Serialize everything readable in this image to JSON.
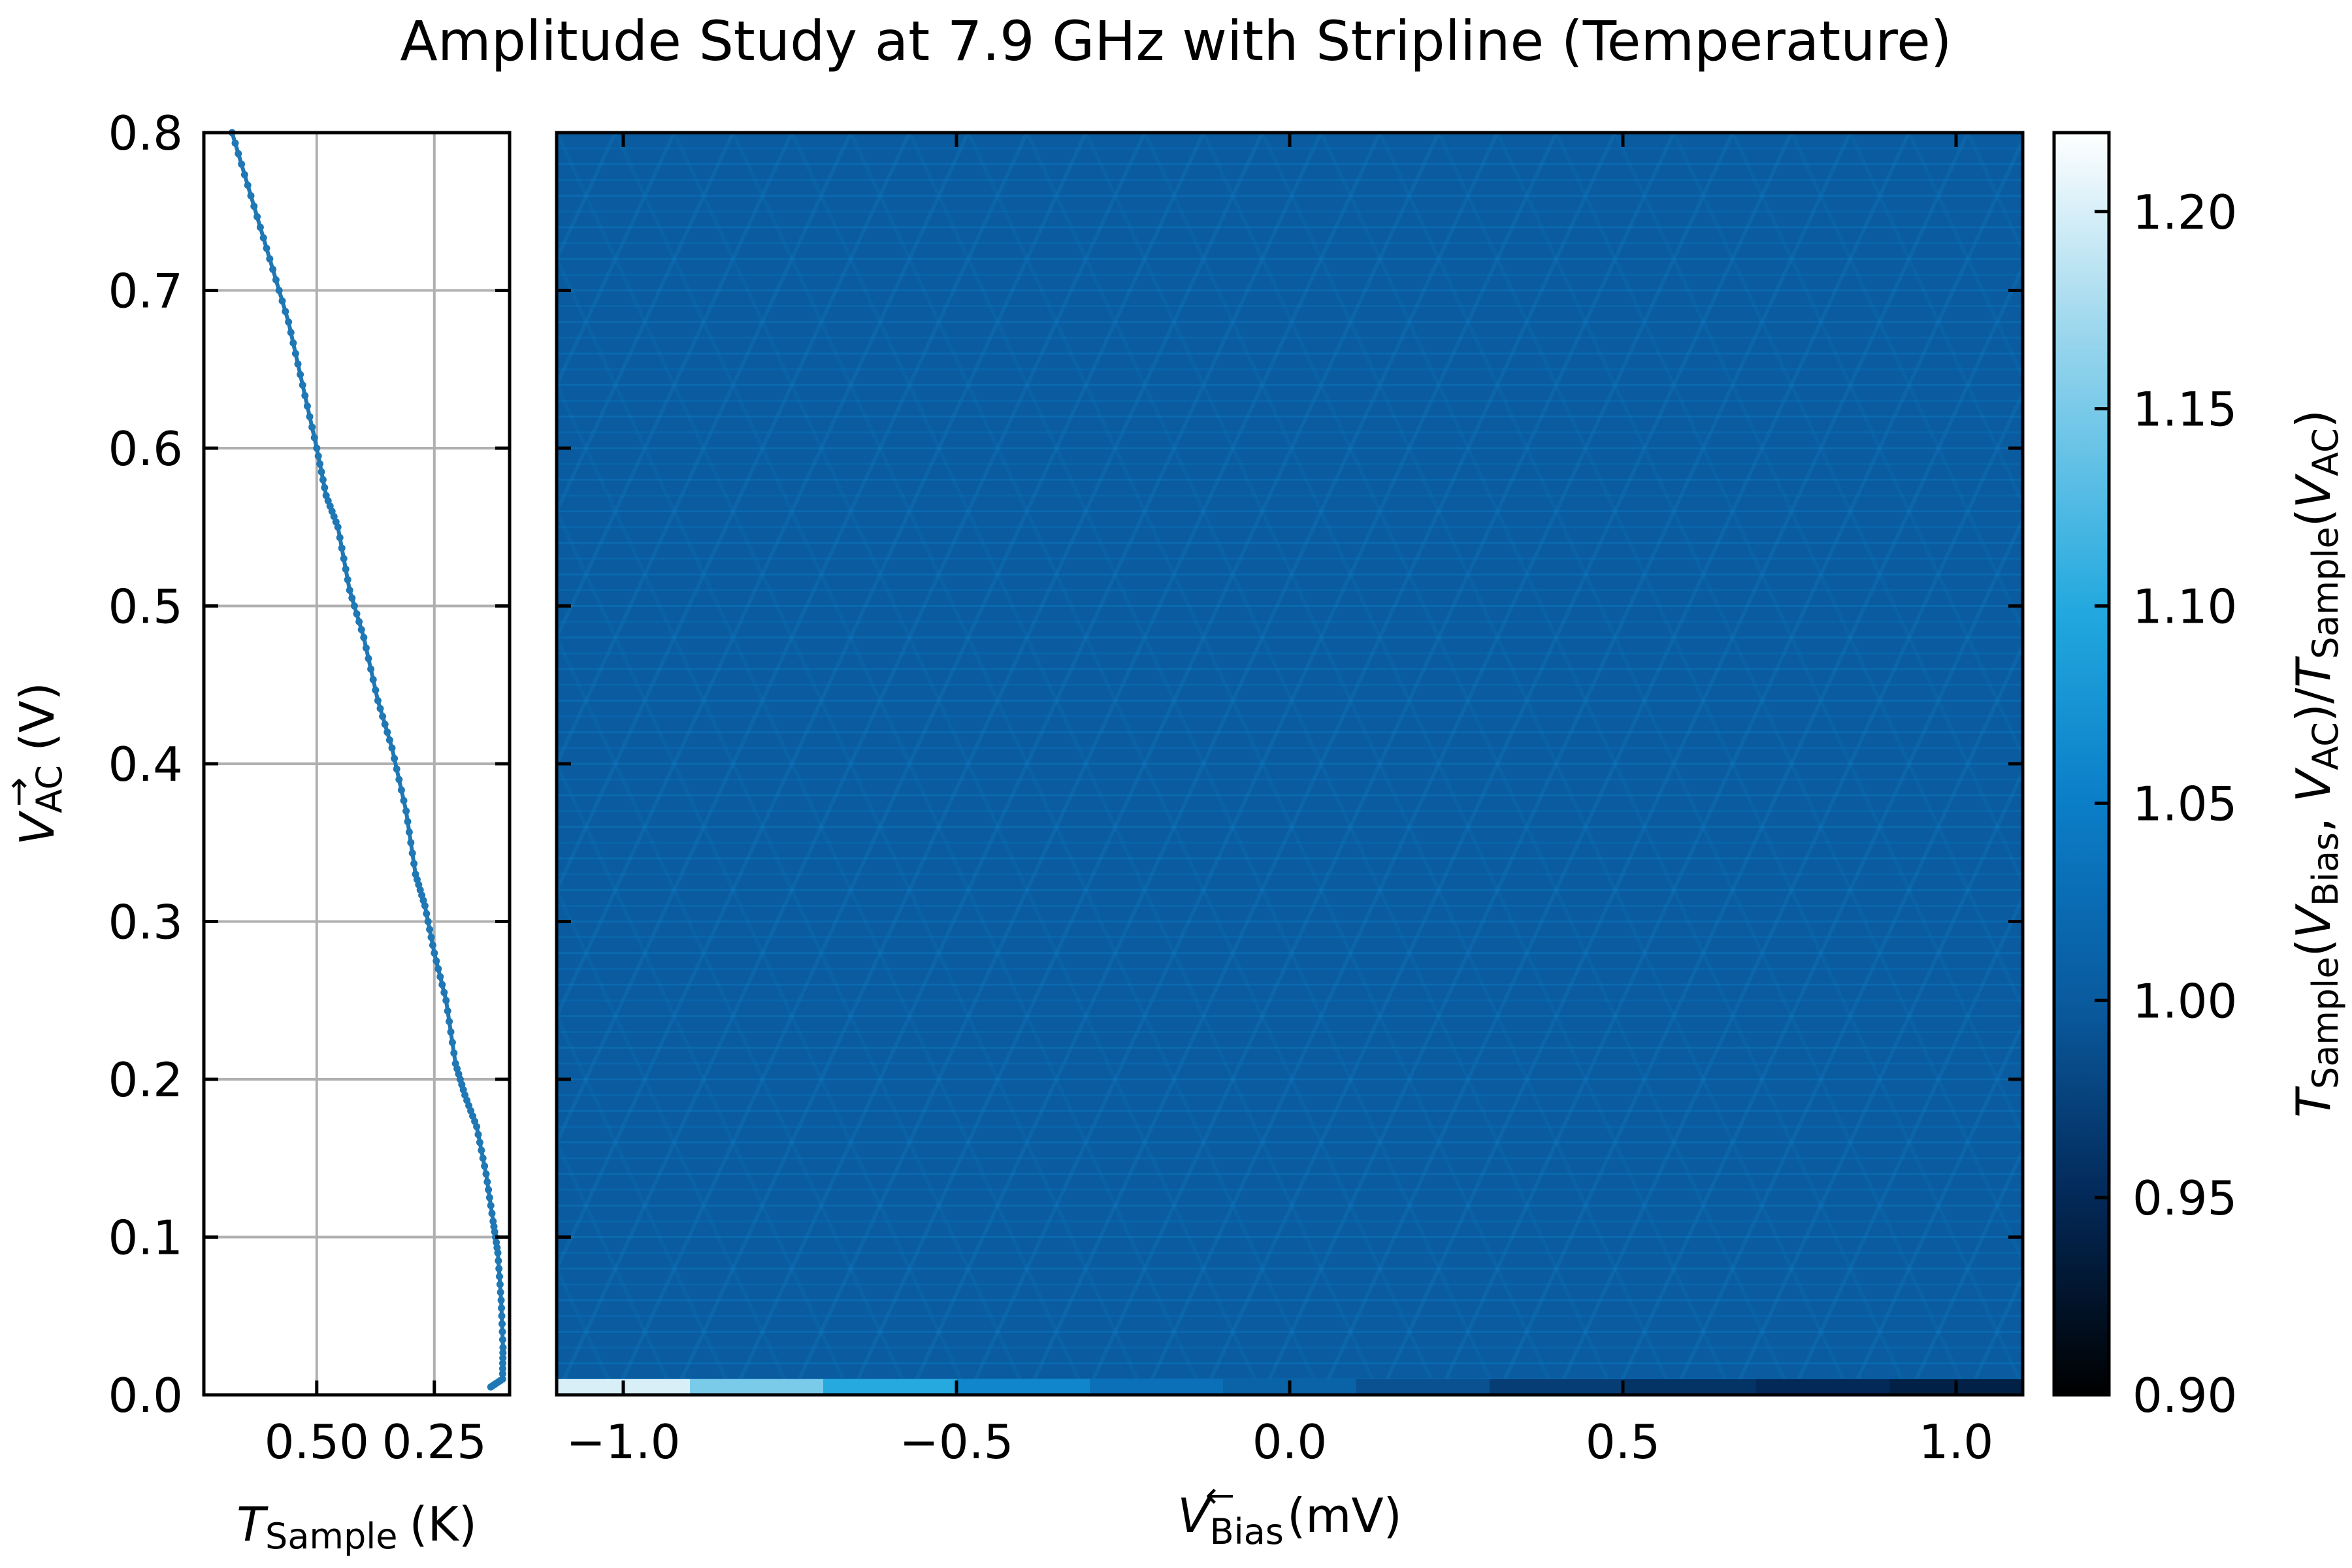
{
  "chart_data": [
    {
      "type": "line",
      "panel": "left",
      "title": "Amplitude Study at 7.9 GHz with Stripline (Temperature)",
      "xlabel": "T_Sample (K)",
      "xlabel_symbol": "T",
      "xlabel_sub": "Sample",
      "xlabel_unit": "(K)",
      "ylabel": "V_AC (V)",
      "ylabel_symbol": "V",
      "ylabel_sub": "AC",
      "ylabel_arrow": "→",
      "ylabel_unit": "(V)",
      "xlim": [
        0.74,
        0.09
      ],
      "ylim": [
        0.0,
        0.8
      ],
      "x_ticks": [
        0.5,
        0.25
      ],
      "x_tick_labels": [
        "0.50",
        "0.25"
      ],
      "y_ticks": [
        0.0,
        0.1,
        0.2,
        0.3,
        0.4,
        0.5,
        0.6,
        0.7,
        0.8
      ],
      "y_tick_labels": [
        "0.0",
        "0.1",
        "0.2",
        "0.3",
        "0.4",
        "0.5",
        "0.6",
        "0.7",
        "0.8"
      ],
      "grid": true,
      "color": "#1f77b4",
      "series": [
        {
          "name": "T_Sample",
          "x": [
            0.13,
            0.105,
            0.104,
            0.108,
            0.115,
            0.125,
            0.14,
            0.16,
            0.185,
            0.205,
            0.225,
            0.25,
            0.27,
            0.29,
            0.31,
            0.34,
            0.37,
            0.4,
            0.43,
            0.455,
            0.48,
            0.5,
            0.53,
            0.56,
            0.6,
            0.64,
            0.68
          ],
          "y": [
            0.005,
            0.01,
            0.03,
            0.06,
            0.09,
            0.11,
            0.14,
            0.17,
            0.19,
            0.21,
            0.25,
            0.28,
            0.31,
            0.33,
            0.37,
            0.41,
            0.44,
            0.48,
            0.51,
            0.55,
            0.57,
            0.6,
            0.64,
            0.68,
            0.72,
            0.76,
            0.8
          ]
        }
      ]
    },
    {
      "type": "heatmap",
      "panel": "right",
      "xlabel": "V_Bias (mV)",
      "xlabel_symbol": "V",
      "xlabel_sub": "Bias",
      "xlabel_arrow": "←",
      "xlabel_unit": "(mV)",
      "xlim": [
        -1.1,
        1.1
      ],
      "ylim": [
        0.0,
        0.8
      ],
      "x_ticks": [
        -1.0,
        -0.5,
        0.0,
        0.5,
        1.0
      ],
      "x_tick_labels": [
        "−1.0",
        "−0.5",
        "0.0",
        "0.5",
        "1.0"
      ],
      "base_value": 1.0,
      "bottom_row": {
        "y_range": [
          0.0,
          0.01
        ],
        "x_breaks": [
          -1.1,
          -0.9,
          -0.7,
          -0.5,
          -0.3,
          -0.1,
          0.1,
          0.3,
          0.5,
          0.7,
          0.9,
          1.1
        ],
        "values": [
          1.2,
          1.15,
          1.1,
          1.06,
          1.03,
          1.01,
          0.99,
          0.97,
          0.96,
          0.95,
          0.94
        ]
      },
      "colorbar": {
        "label": "T_Sample(V_Bias, V_AC)/T_Sample(V_AC)",
        "label_parts": [
          "T",
          "Sample",
          "(",
          "V",
          "Bias",
          ", ",
          "V",
          "AC",
          ")/",
          "T",
          "Sample",
          "(",
          "V",
          "AC",
          ")"
        ],
        "range": [
          0.9,
          1.22
        ],
        "ticks": [
          0.9,
          0.95,
          1.0,
          1.05,
          1.1,
          1.15,
          1.2
        ],
        "tick_labels": [
          "0.90",
          "0.95",
          "1.00",
          "1.05",
          "1.10",
          "1.15",
          "1.20"
        ],
        "colormap": [
          "#000000",
          "#032a5a",
          "#0a5a9e",
          "#0b7ec8",
          "#22a8de",
          "#9ad6ed",
          "#ffffff"
        ]
      }
    }
  ]
}
